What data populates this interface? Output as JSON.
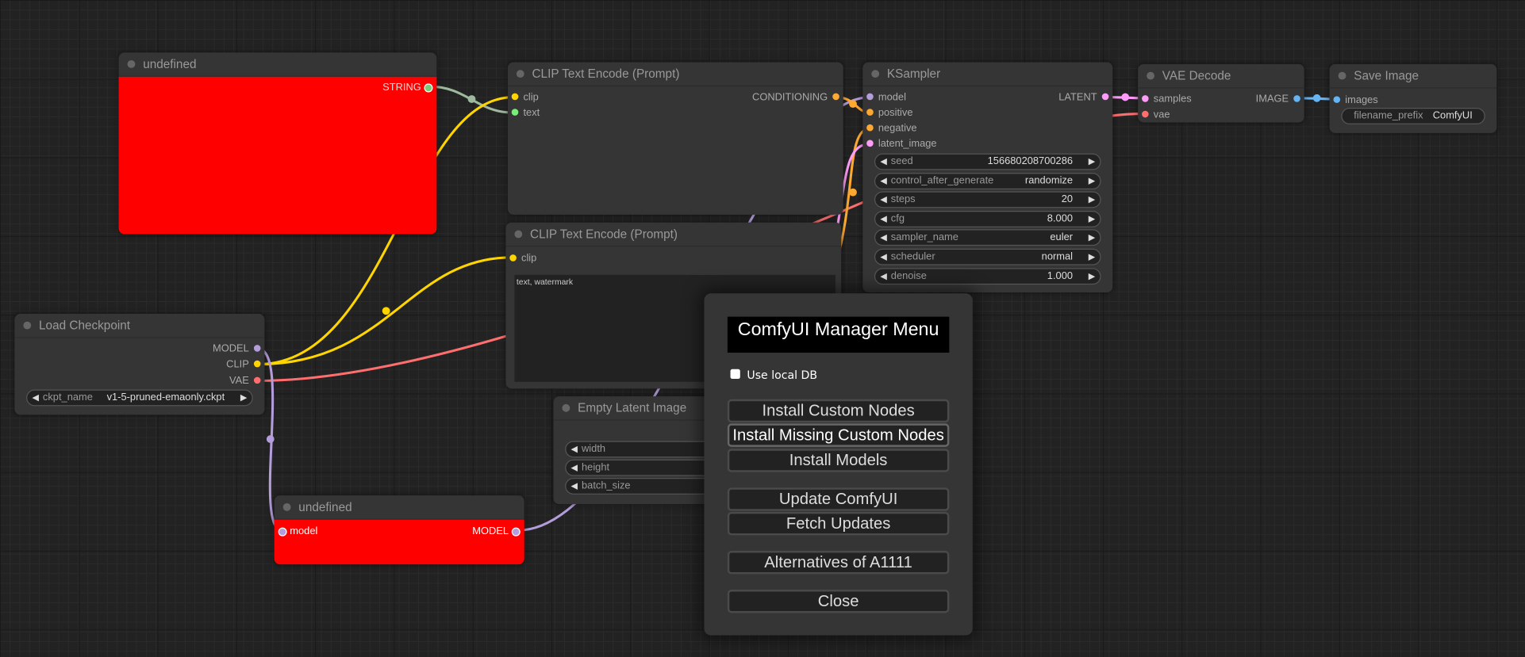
{
  "colors": {
    "clip": "#ffd500",
    "model": "#b39ddb",
    "vae": "#ff6e6e",
    "conditioning": "#ffa931",
    "latent": "#ff9cf9",
    "image": "#64b5f6",
    "string": "#9fb99f",
    "node_error": "#ff0000"
  },
  "nodes": {
    "prim_string": {
      "title": "undefined",
      "output": "STRING"
    },
    "clip_pos": {
      "title": "CLIP Text Encode (Prompt)",
      "inputs": [
        "clip",
        "text"
      ],
      "output": "CONDITIONING"
    },
    "ksampler": {
      "title": "KSampler",
      "inputs": [
        "model",
        "positive",
        "negative",
        "latent_image"
      ],
      "output": "LATENT",
      "widgets": [
        {
          "label": "seed",
          "value": "156680208700286"
        },
        {
          "label": "control_after_generate",
          "value": "randomize"
        },
        {
          "label": "steps",
          "value": "20"
        },
        {
          "label": "cfg",
          "value": "8.000"
        },
        {
          "label": "sampler_name",
          "value": "euler"
        },
        {
          "label": "scheduler",
          "value": "normal"
        },
        {
          "label": "denoise",
          "value": "1.000"
        }
      ]
    },
    "vae_decode": {
      "title": "VAE Decode",
      "inputs": [
        "samples",
        "vae"
      ],
      "output": "IMAGE"
    },
    "save_image": {
      "title": "Save Image",
      "input": "images",
      "widget": {
        "label": "filename_prefix",
        "value": "ComfyUI"
      }
    },
    "clip_neg": {
      "title": "CLIP Text Encode (Prompt)",
      "input": "clip",
      "text": "text, watermark"
    },
    "load_ckpt": {
      "title": "Load Checkpoint",
      "outputs": [
        "MODEL",
        "CLIP",
        "VAE"
      ],
      "widget": {
        "label": "ckpt_name",
        "value": "v1-5-pruned-emaonly.ckpt"
      }
    },
    "empty_latent": {
      "title": "Empty Latent Image",
      "widgets": [
        "width",
        "height",
        "batch_size"
      ]
    },
    "prim_model": {
      "title": "undefined",
      "input": "model",
      "output": "MODEL"
    }
  },
  "dialog": {
    "title": "ComfyUI Manager Menu",
    "use_local_db": "Use local DB",
    "use_local_db_checked": false,
    "buttons": [
      "Install Custom Nodes",
      "Install Missing Custom Nodes",
      "Install Models",
      "Update ComfyUI",
      "Fetch Updates",
      "Alternatives of A1111",
      "Close"
    ]
  }
}
